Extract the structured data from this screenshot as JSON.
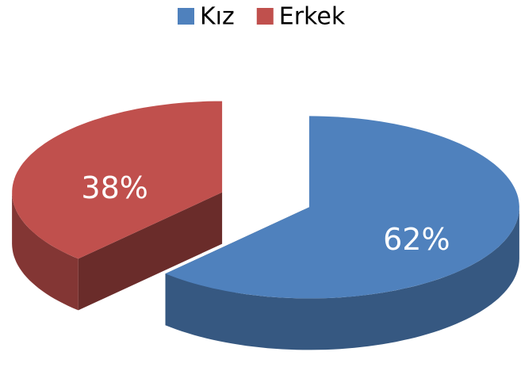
{
  "chart_data": {
    "type": "pie",
    "categories": [
      "Kız",
      "Erkek"
    ],
    "values": [
      62,
      38
    ],
    "value_labels": [
      "62%",
      "38%"
    ],
    "colors": [
      "#4f81bd",
      "#c0504d"
    ],
    "legend": "top"
  }
}
